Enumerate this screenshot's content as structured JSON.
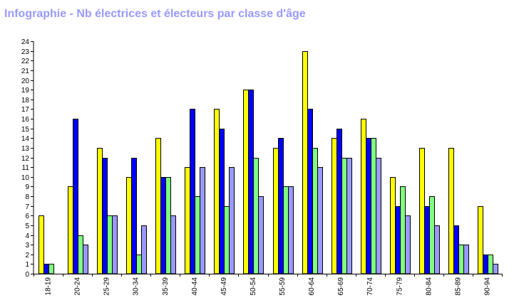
{
  "title": "Infographie - Nb électrices et électeurs par classe d'âge",
  "colors": {
    "series": [
      "#ffff00",
      "#0000ff",
      "#80ff80",
      "#9999ff"
    ],
    "axis": "#000000",
    "title": "#9999ff"
  },
  "chart_data": {
    "type": "bar",
    "title": "Infographie - Nb électrices et électeurs par classe d'âge",
    "xlabel": "",
    "ylabel": "",
    "ylim": [
      0,
      24
    ],
    "yticks": [
      0,
      1,
      2,
      3,
      4,
      5,
      6,
      7,
      8,
      9,
      10,
      11,
      12,
      13,
      14,
      15,
      16,
      17,
      18,
      19,
      20,
      21,
      22,
      23,
      24
    ],
    "grid": false,
    "legend": "none",
    "categories": [
      "18-19",
      "20-24",
      "25-29",
      "30-34",
      "35-39",
      "40-44",
      "45-49",
      "50-54",
      "55-59",
      "60-64",
      "65-69",
      "70-74",
      "75-79",
      "80-84",
      "85-89",
      "90-94"
    ],
    "series": [
      {
        "values": [
          6,
          9,
          13,
          10,
          14,
          11,
          17,
          19,
          13,
          23,
          14,
          16,
          10,
          13,
          13,
          7
        ]
      },
      {
        "values": [
          1,
          16,
          12,
          12,
          10,
          17,
          15,
          19,
          14,
          17,
          15,
          14,
          7,
          7,
          5,
          2
        ]
      },
      {
        "values": [
          1,
          4,
          6,
          2,
          10,
          8,
          7,
          12,
          9,
          13,
          12,
          14,
          9,
          8,
          3,
          2
        ]
      },
      {
        "values": [
          0,
          3,
          6,
          5,
          6,
          11,
          11,
          8,
          9,
          11,
          12,
          12,
          6,
          5,
          3,
          1
        ]
      }
    ]
  }
}
